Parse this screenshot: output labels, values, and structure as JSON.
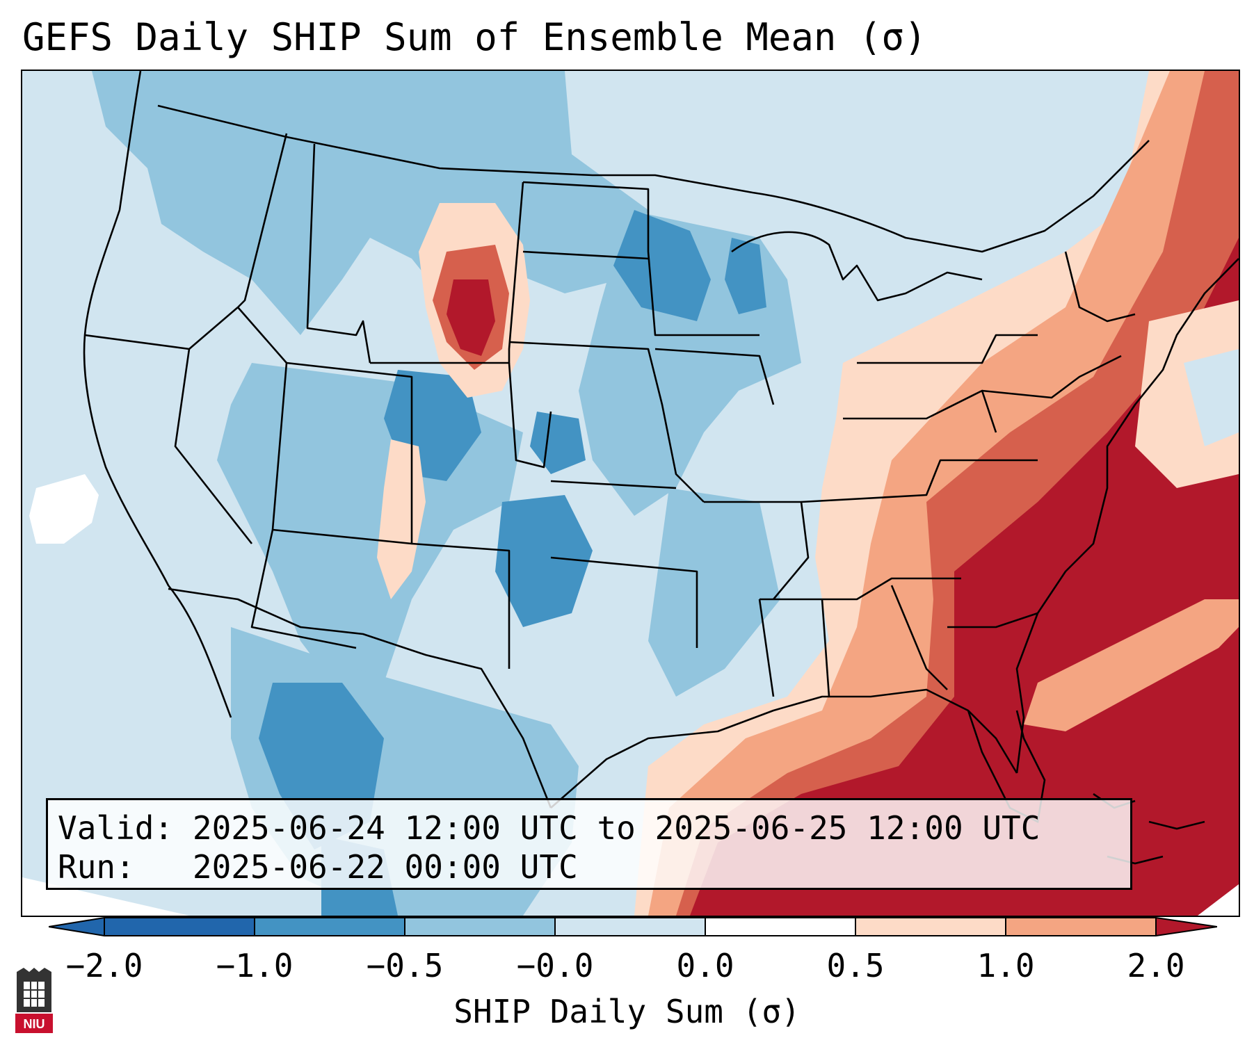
{
  "title": "GEFS Daily SHIP Sum of Ensemble Mean (σ)",
  "info_box": {
    "valid_label": "Valid:",
    "valid_value": "2025-06-24 12:00 UTC to 2025-06-25 12:00 UTC",
    "run_label": "Run:",
    "run_value": "2025-06-22 00:00 UTC"
  },
  "colorbar": {
    "label": "SHIP Daily Sum (σ)",
    "ticks": [
      "−2.0",
      "−1.0",
      "−0.5",
      "−0.0",
      "0.0",
      "0.5",
      "1.0",
      "2.0"
    ],
    "colors": [
      "#2166ac",
      "#4393c3",
      "#92c5de",
      "#d1e5f0",
      "#ffffff",
      "#fddbc7",
      "#f4a582",
      "#d6604d",
      "#b2182b"
    ]
  },
  "map": {
    "region": "CONUS",
    "ocean_fill": "#d1e5f0",
    "dominant_anomaly": "strong positive over Southeast US, Gulf and western Atlantic; negative over Plains and Southwest"
  },
  "logo": {
    "text": "NIU",
    "color": "#c8102e"
  }
}
